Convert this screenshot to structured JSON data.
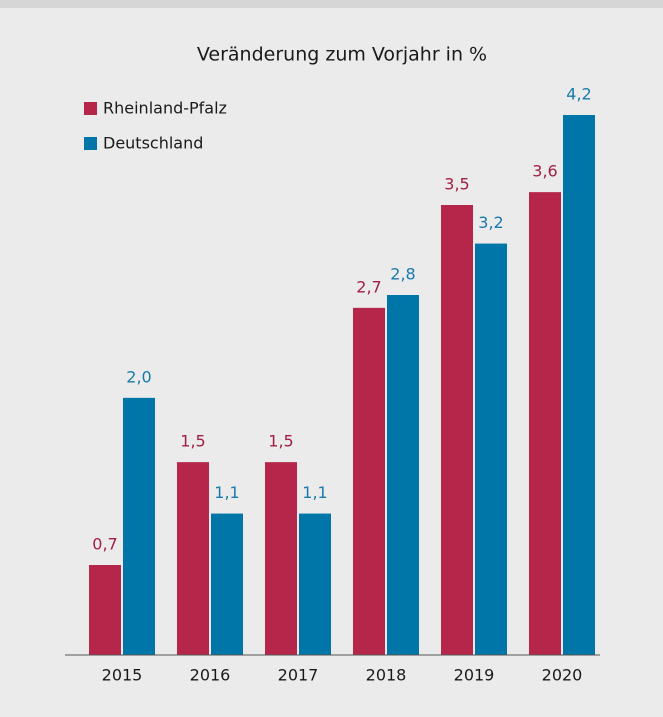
{
  "chart_data": {
    "type": "bar",
    "title": "Veränderung zum Vorjahr in %",
    "categories": [
      "2015",
      "2016",
      "2017",
      "2018",
      "2019",
      "2020"
    ],
    "series": [
      {
        "name": "Rheinland-Pfalz",
        "color": "#b5264a",
        "values": [
          0.7,
          1.5,
          1.5,
          2.7,
          3.5,
          3.6
        ],
        "value_labels": [
          "0,7",
          "1,5",
          "1,5",
          "2,7",
          "3,5",
          "3,6"
        ]
      },
      {
        "name": "Deutschland",
        "color": "#0075a8",
        "values": [
          2.0,
          1.1,
          1.1,
          2.8,
          3.2,
          4.2
        ],
        "value_labels": [
          "2,0",
          "1,1",
          "1,1",
          "2,8",
          "3,2",
          "4,2"
        ]
      }
    ],
    "ylim": [
      0,
      4.2
    ],
    "legend": "top-left"
  }
}
